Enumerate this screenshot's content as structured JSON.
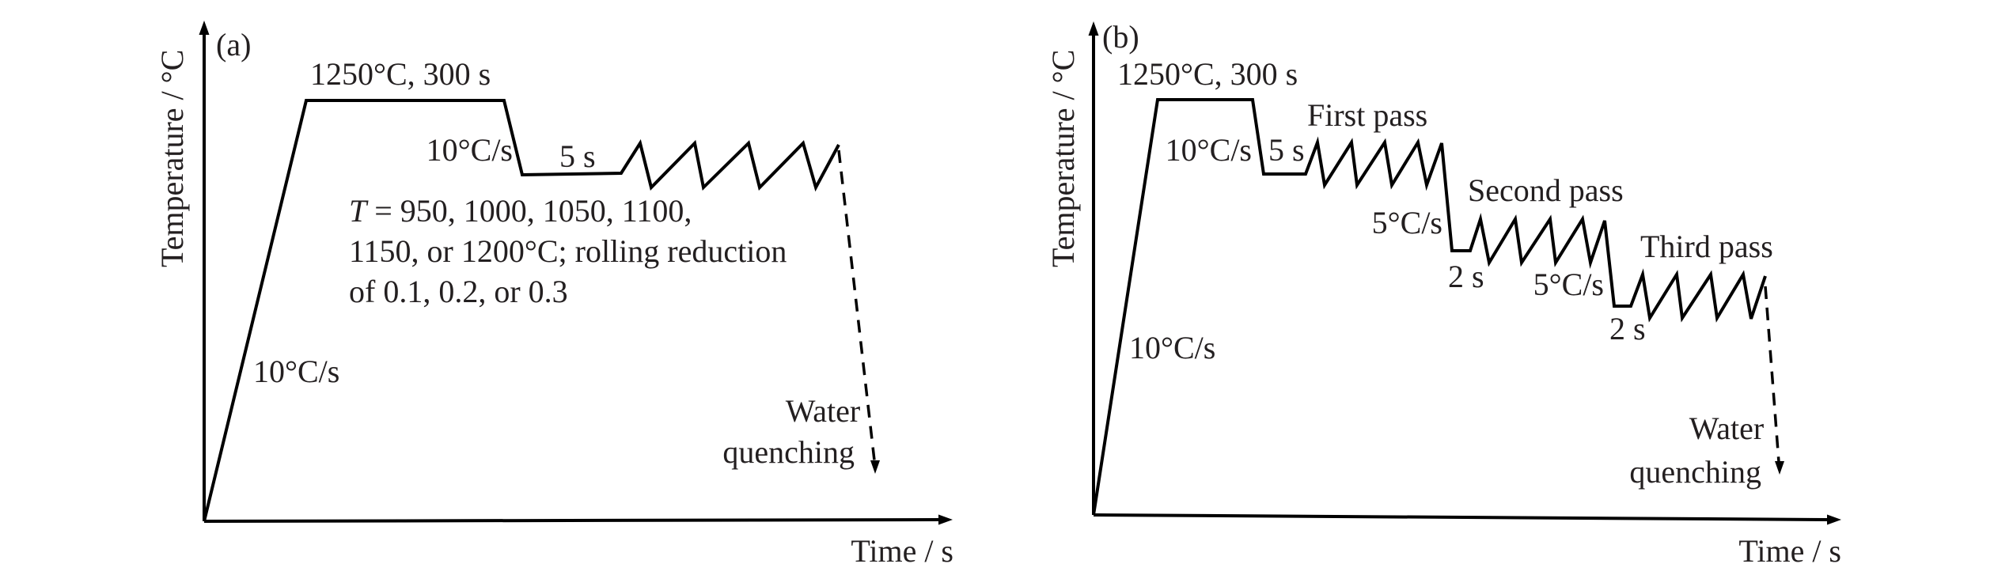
{
  "panels": [
    {
      "id": "a",
      "tag": "(a)",
      "y_axis_label": "Temperature / °C",
      "x_axis_label": "Time / s",
      "labels": {
        "heating_rate": "10°C/s",
        "soak": "1250°C, 300 s",
        "cooling_rate": "10°C/s",
        "hold": "5 s",
        "conditions_line1_var": "T",
        "conditions_line1_rest": " = 950, 1000, 1050, 1100,",
        "conditions_line2": "1150, or 1200°C; rolling reduction",
        "conditions_line3": "of 0.1, 0.2, or 0.3",
        "quench_line1": "Water",
        "quench_line2": "quenching"
      }
    },
    {
      "id": "b",
      "tag": "(b)",
      "y_axis_label": "Temperature / °C",
      "x_axis_label": "Time / s",
      "labels": {
        "heating_rate": "10°C/s",
        "soak": "1250°C, 300 s",
        "cooling_rate": "10°C/s",
        "hold_1": "5 s",
        "pass_1": "First pass",
        "cooling_rate_2": "5°C/s",
        "hold_2": "2 s",
        "pass_2": "Second pass",
        "cooling_rate_3": "5°C/s",
        "hold_3": "2 s",
        "pass_3": "Third pass",
        "quench_line1": "Water",
        "quench_line2": "quenching"
      }
    }
  ],
  "colors": {
    "stroke": "#000000",
    "text": "#231f20",
    "background": "#ffffff"
  }
}
